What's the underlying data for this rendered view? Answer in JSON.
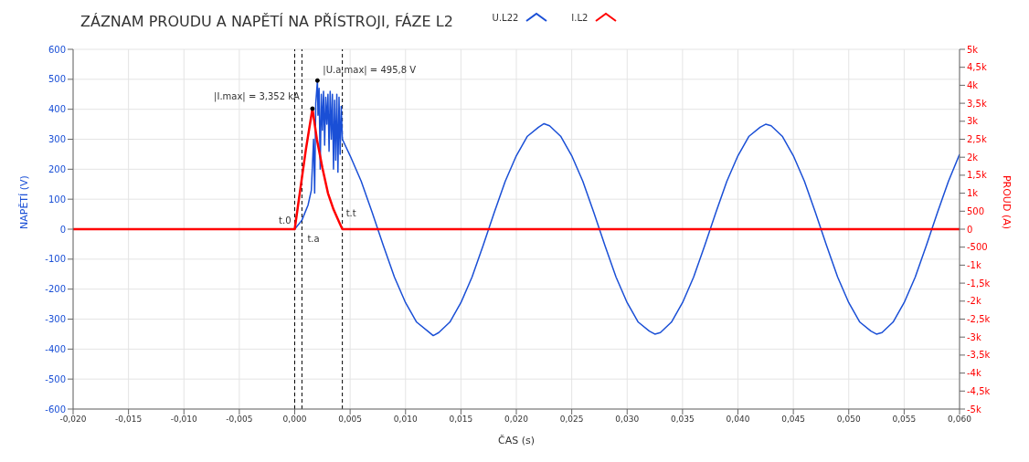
{
  "chart_data": {
    "type": "line",
    "title": "ZÁZNAM PROUDU A NAPĚTÍ NA PŘÍSTROJI, FÁZE L2",
    "xlabel": "ČAS (s)",
    "ylabel": "NAPĚTÍ (V)",
    "y2label": "PROUD (A)",
    "xlim": [
      -0.02,
      0.06
    ],
    "xticks": [
      {
        "value": -0.02,
        "label": "-0,020"
      },
      {
        "value": -0.015,
        "label": "-0,015"
      },
      {
        "value": -0.01,
        "label": "-0,010"
      },
      {
        "value": -0.005,
        "label": "-0,005"
      },
      {
        "value": 0,
        "label": "0,000"
      },
      {
        "value": 0.005,
        "label": "0,005"
      },
      {
        "value": 0.01,
        "label": "0,010"
      },
      {
        "value": 0.015,
        "label": "0,015"
      },
      {
        "value": 0.02,
        "label": "0,020"
      },
      {
        "value": 0.025,
        "label": "0,025"
      },
      {
        "value": 0.03,
        "label": "0,030"
      },
      {
        "value": 0.035,
        "label": "0,035"
      },
      {
        "value": 0.04,
        "label": "0,040"
      },
      {
        "value": 0.045,
        "label": "0,045"
      },
      {
        "value": 0.05,
        "label": "0,050"
      },
      {
        "value": 0.055,
        "label": "0,055"
      },
      {
        "value": 0.06,
        "label": "0,060"
      }
    ],
    "ylim": [
      -600,
      600
    ],
    "yticks": [
      -600,
      -500,
      -400,
      -300,
      -200,
      -100,
      0,
      100,
      200,
      300,
      400,
      500,
      600
    ],
    "y2lim": [
      -5000,
      5000
    ],
    "y2ticks": [
      {
        "value": -5000,
        "label": "-5k"
      },
      {
        "value": -4500,
        "label": "-4,5k"
      },
      {
        "value": -4000,
        "label": "-4k"
      },
      {
        "value": -3500,
        "label": "-3,5k"
      },
      {
        "value": -3000,
        "label": "-3k"
      },
      {
        "value": -2500,
        "label": "-2,5k"
      },
      {
        "value": -2000,
        "label": "-2k"
      },
      {
        "value": -1500,
        "label": "-1,5k"
      },
      {
        "value": -1000,
        "label": "-1k"
      },
      {
        "value": -500,
        "label": "-500"
      },
      {
        "value": 0,
        "label": "0"
      },
      {
        "value": 500,
        "label": "500"
      },
      {
        "value": 1000,
        "label": "1k"
      },
      {
        "value": 1500,
        "label": "1,5k"
      },
      {
        "value": 2000,
        "label": "2k"
      },
      {
        "value": 2500,
        "label": "2,5k"
      },
      {
        "value": 3000,
        "label": "3k"
      },
      {
        "value": 3500,
        "label": "3,5k"
      },
      {
        "value": 4000,
        "label": "4k"
      },
      {
        "value": 4500,
        "label": "4,5k"
      },
      {
        "value": 5000,
        "label": "5k"
      }
    ],
    "series": [
      {
        "name": "U.L22",
        "color": "#1a4fd6",
        "x": [
          -0.02,
          0,
          0.00065,
          0.0012,
          0.0015,
          0.0017,
          0.0018,
          0.0019,
          0.00205,
          0.0021,
          0.0022,
          0.0023,
          0.0024,
          0.0025,
          0.0026,
          0.0027,
          0.0028,
          0.0029,
          0.003,
          0.0031,
          0.0032,
          0.0033,
          0.0034,
          0.0035,
          0.0036,
          0.0037,
          0.0038,
          0.0039,
          0.004,
          0.0041,
          0.0042,
          0.0043,
          0.005,
          0.006,
          0.007,
          0.008,
          0.009,
          0.01,
          0.011,
          0.012,
          0.0125,
          0.013,
          0.014,
          0.015,
          0.016,
          0.017,
          0.018,
          0.019,
          0.02,
          0.021,
          0.022,
          0.0225,
          0.023,
          0.024,
          0.025,
          0.026,
          0.027,
          0.028,
          0.029,
          0.03,
          0.031,
          0.032,
          0.0325,
          0.033,
          0.034,
          0.035,
          0.036,
          0.037,
          0.038,
          0.039,
          0.04,
          0.041,
          0.042,
          0.0425,
          0.043,
          0.044,
          0.045,
          0.046,
          0.047,
          0.048,
          0.049,
          0.05,
          0.051,
          0.052,
          0.0525,
          0.053,
          0.054,
          0.055,
          0.056,
          0.057,
          0.058,
          0.059,
          0.06
        ],
        "values": [
          0,
          0,
          30,
          80,
          130,
          300,
          120,
          420,
          495.8,
          380,
          470,
          200,
          450,
          330,
          460,
          280,
          440,
          350,
          450,
          260,
          460,
          300,
          450,
          200,
          430,
          230,
          450,
          190,
          440,
          250,
          410,
          300,
          245,
          160,
          55,
          -55,
          -160,
          -245,
          -310,
          -340,
          -355,
          -345,
          -310,
          -245,
          -160,
          -55,
          55,
          160,
          245,
          310,
          340,
          352,
          345,
          310,
          245,
          160,
          55,
          -55,
          -160,
          -245,
          -310,
          -340,
          -350,
          -345,
          -310,
          -245,
          -160,
          -55,
          55,
          160,
          245,
          310,
          340,
          350,
          345,
          310,
          245,
          160,
          55,
          -55,
          -160,
          -245,
          -310,
          -340,
          -350,
          -345,
          -310,
          -245,
          -160,
          -55,
          55,
          160,
          250
        ]
      },
      {
        "name": "I.L2",
        "color": "#ff0000",
        "axis": "y2",
        "x": [
          -0.02,
          0,
          0.0005,
          0.001,
          0.0016,
          0.002,
          0.0025,
          0.003,
          0.0035,
          0.004,
          0.0043,
          0.06
        ],
        "values": [
          0,
          0,
          1100,
          2200,
          3352,
          2500,
          1700,
          1000,
          550,
          200,
          0,
          0
        ]
      }
    ],
    "ref_lines": [
      {
        "axis": "x",
        "value": 0,
        "label": "t.0",
        "color": "#000000",
        "line_style": "dashed"
      },
      {
        "axis": "x",
        "value": 0.00065,
        "label": "t.a",
        "color": "#000000",
        "line_style": "dashed"
      },
      {
        "axis": "x",
        "value": 0.0043,
        "label": "t.t",
        "color": "#000000",
        "line_style": "dashed"
      }
    ],
    "annotations": [
      {
        "text": "|I.max| = 3,352 kA",
        "x": 0.0016,
        "y": 402
      },
      {
        "text": "|U.a.max| = 495,8 V",
        "x": 0.00205,
        "y": 495.8
      }
    ],
    "grid": true,
    "legend": "top",
    "marker": "none",
    "line_style": "solid"
  }
}
